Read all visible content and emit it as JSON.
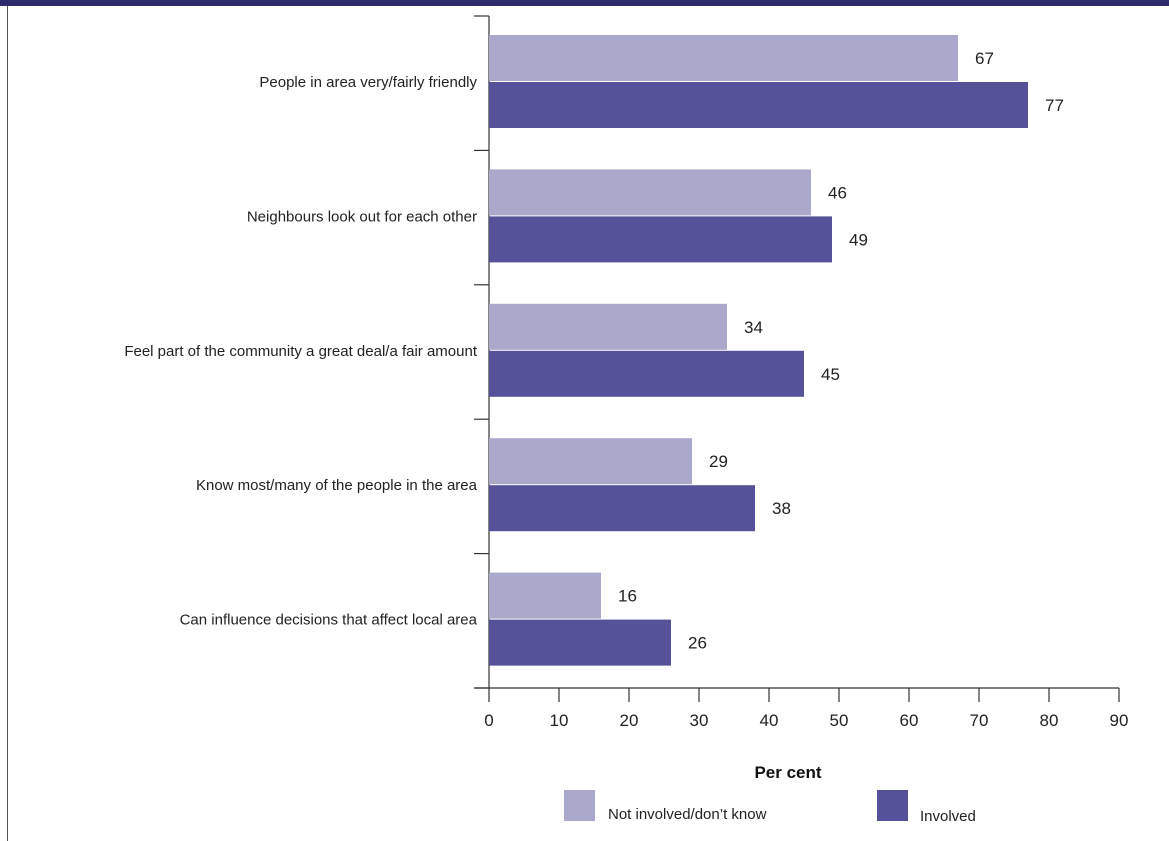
{
  "colors": {
    "frame": "#2d2b6e",
    "not_involved": "#aaa8cb",
    "involved": "#55529a",
    "axis": "#333333"
  },
  "chart_data": {
    "type": "bar",
    "orientation": "horizontal",
    "categories": [
      "People in area very/fairly friendly",
      "Neighbours look out for each other",
      "Feel part of the community a great deal/a fair amount",
      "Know most/many of the people in the area",
      "Can influence decisions that affect local area"
    ],
    "series": [
      {
        "name": "Not involved/don’t know",
        "values": [
          67,
          46,
          34,
          29,
          16
        ]
      },
      {
        "name": "Involved",
        "values": [
          77,
          49,
          45,
          38,
          26
        ]
      }
    ],
    "xlabel": "Per cent",
    "xlim": [
      0,
      90
    ],
    "xticks": [
      0,
      10,
      20,
      30,
      40,
      50,
      60,
      70,
      80,
      90
    ],
    "legend": "bottom"
  }
}
